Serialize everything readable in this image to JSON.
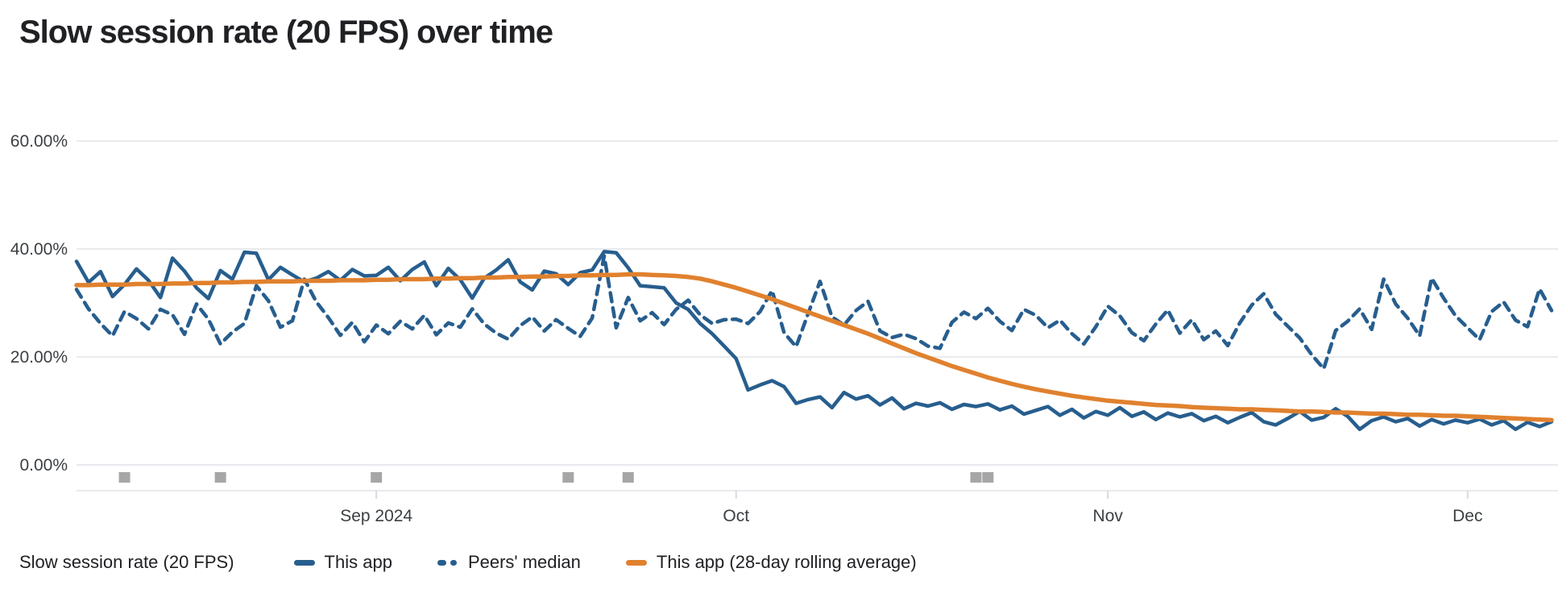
{
  "page": {
    "title": "Slow session rate (20 FPS) over time"
  },
  "legend": {
    "series_label": "Slow session rate (20 FPS)",
    "items": [
      {
        "label": "This app",
        "style": "solid",
        "color": "#275e8e"
      },
      {
        "label": "Peers' median",
        "style": "dashed",
        "color": "#275e8e"
      },
      {
        "label": "This app (28-day rolling average)",
        "style": "solid",
        "color": "#e0812e"
      }
    ]
  },
  "colors": {
    "background": "#ffffff",
    "title_text": "#202124",
    "axis_text": "#3c4043",
    "gridline": "#e8eaed",
    "tick": "#d7dadd",
    "series_blue": "#275e8e",
    "series_orange": "#e0812e",
    "release_marker": "#a6a6a6"
  },
  "chart_data": {
    "type": "line",
    "title": "Slow session rate (20 FPS) over time",
    "ylabel": "Slow session rate (20 FPS)",
    "grid": true,
    "legend_position": "bottom",
    "ylim": [
      0,
      66
    ],
    "y_tick_values": [
      60,
      40,
      20,
      0
    ],
    "y_ticks": [
      "60.00%",
      "40.00%",
      "20.00%",
      "0.00%"
    ],
    "x_ticks": [
      {
        "label": "Sep 2024",
        "date": "2024-09-01"
      },
      {
        "label": "Oct",
        "date": "2024-10-01"
      },
      {
        "label": "Nov",
        "date": "2024-11-01"
      },
      {
        "label": "Dec",
        "date": "2024-12-01"
      }
    ],
    "x": [
      "2024-08-07",
      "2024-08-08",
      "2024-08-09",
      "2024-08-10",
      "2024-08-11",
      "2024-08-12",
      "2024-08-13",
      "2024-08-14",
      "2024-08-15",
      "2024-08-16",
      "2024-08-17",
      "2024-08-18",
      "2024-08-19",
      "2024-08-20",
      "2024-08-21",
      "2024-08-22",
      "2024-08-23",
      "2024-08-24",
      "2024-08-25",
      "2024-08-26",
      "2024-08-27",
      "2024-08-28",
      "2024-08-29",
      "2024-08-30",
      "2024-08-31",
      "2024-09-01",
      "2024-09-02",
      "2024-09-03",
      "2024-09-04",
      "2024-09-05",
      "2024-09-06",
      "2024-09-07",
      "2024-09-08",
      "2024-09-09",
      "2024-09-10",
      "2024-09-11",
      "2024-09-12",
      "2024-09-13",
      "2024-09-14",
      "2024-09-15",
      "2024-09-16",
      "2024-09-17",
      "2024-09-18",
      "2024-09-19",
      "2024-09-20",
      "2024-09-21",
      "2024-09-22",
      "2024-09-23",
      "2024-09-24",
      "2024-09-25",
      "2024-09-26",
      "2024-09-27",
      "2024-09-28",
      "2024-09-29",
      "2024-09-30",
      "2024-10-01",
      "2024-10-02",
      "2024-10-03",
      "2024-10-04",
      "2024-10-05",
      "2024-10-06",
      "2024-10-07",
      "2024-10-08",
      "2024-10-09",
      "2024-10-10",
      "2024-10-11",
      "2024-10-12",
      "2024-10-13",
      "2024-10-14",
      "2024-10-15",
      "2024-10-16",
      "2024-10-17",
      "2024-10-18",
      "2024-10-19",
      "2024-10-20",
      "2024-10-21",
      "2024-10-22",
      "2024-10-23",
      "2024-10-24",
      "2024-10-25",
      "2024-10-26",
      "2024-10-27",
      "2024-10-28",
      "2024-10-29",
      "2024-10-30",
      "2024-10-31",
      "2024-11-01",
      "2024-11-02",
      "2024-11-03",
      "2024-11-04",
      "2024-11-05",
      "2024-11-06",
      "2024-11-07",
      "2024-11-08",
      "2024-11-09",
      "2024-11-10",
      "2024-11-11",
      "2024-11-12",
      "2024-11-13",
      "2024-11-14",
      "2024-11-15",
      "2024-11-16",
      "2024-11-17",
      "2024-11-18",
      "2024-11-19",
      "2024-11-20",
      "2024-11-21",
      "2024-11-22",
      "2024-11-23",
      "2024-11-24",
      "2024-11-25",
      "2024-11-26",
      "2024-11-27",
      "2024-11-28",
      "2024-11-29",
      "2024-11-30",
      "2024-12-01",
      "2024-12-02",
      "2024-12-03",
      "2024-12-04",
      "2024-12-05",
      "2024-12-06",
      "2024-12-07",
      "2024-12-08"
    ],
    "series": [
      {
        "name": "This app",
        "style": "solid",
        "color": "#275e8e",
        "values": [
          37.7,
          33.8,
          35.8,
          31.2,
          33.4,
          36.3,
          34.2,
          31.0,
          38.3,
          35.9,
          32.8,
          30.8,
          36.0,
          34.4,
          39.4,
          39.2,
          34.3,
          36.6,
          35.2,
          33.9,
          34.6,
          35.8,
          34.2,
          36.2,
          35.0,
          35.1,
          36.6,
          34.1,
          36.2,
          37.6,
          33.2,
          36.4,
          34.3,
          30.9,
          34.6,
          36.1,
          38.0,
          33.9,
          32.4,
          35.9,
          35.4,
          33.4,
          35.6,
          36.1,
          39.5,
          39.3,
          36.5,
          33.2,
          33.0,
          32.8,
          30.0,
          28.8,
          26.2,
          24.3,
          22.0,
          19.7,
          13.9,
          14.8,
          15.6,
          14.5,
          11.4,
          12.1,
          12.6,
          10.6,
          13.4,
          12.2,
          12.8,
          11.1,
          12.4,
          10.4,
          11.4,
          10.9,
          11.5,
          10.3,
          11.2,
          10.8,
          11.3,
          10.2,
          10.9,
          9.4,
          10.1,
          10.8,
          9.2,
          10.3,
          8.7,
          9.9,
          9.2,
          10.6,
          9.0,
          9.8,
          8.4,
          9.6,
          8.9,
          9.5,
          8.2,
          9.0,
          7.8,
          8.8,
          9.7,
          8.0,
          7.4,
          8.6,
          9.9,
          8.3,
          8.8,
          10.4,
          9.0,
          6.6,
          8.2,
          8.9,
          8.0,
          8.6,
          7.2,
          8.4,
          7.6,
          8.3,
          7.8,
          8.5,
          7.4,
          8.2,
          6.6,
          7.9,
          7.1,
          8.0
        ]
      },
      {
        "name": "Peers' median",
        "style": "dashed",
        "color": "#275e8e",
        "values": [
          32.5,
          28.9,
          26.2,
          23.9,
          28.4,
          27.1,
          25.2,
          28.8,
          27.8,
          24.2,
          29.8,
          27.0,
          22.4,
          24.6,
          26.2,
          33.2,
          30.4,
          25.5,
          26.7,
          34.4,
          30.2,
          27.3,
          24.0,
          26.4,
          22.8,
          25.9,
          24.3,
          26.6,
          25.2,
          27.7,
          24.1,
          26.3,
          25.5,
          28.9,
          26.1,
          24.4,
          23.3,
          25.8,
          27.4,
          24.8,
          26.9,
          25.3,
          23.8,
          27.2,
          38.7,
          25.4,
          31.0,
          26.7,
          28.2,
          26.0,
          28.8,
          30.5,
          27.8,
          26.2,
          26.9,
          27.0,
          26.2,
          28.4,
          32.3,
          24.5,
          21.9,
          28.0,
          34.0,
          27.4,
          25.9,
          28.6,
          30.3,
          24.8,
          23.6,
          24.2,
          23.4,
          22.0,
          21.6,
          26.4,
          28.3,
          27.1,
          29.0,
          26.6,
          24.9,
          28.8,
          27.7,
          25.4,
          26.8,
          24.3,
          22.4,
          25.6,
          29.4,
          27.6,
          24.5,
          23.0,
          26.1,
          28.7,
          24.4,
          26.9,
          23.2,
          24.8,
          22.1,
          26.3,
          29.6,
          31.7,
          27.9,
          25.7,
          23.5,
          20.4,
          17.8,
          24.9,
          26.6,
          28.9,
          25.1,
          34.4,
          29.8,
          27.2,
          23.9,
          34.6,
          30.9,
          27.6,
          25.4,
          23.2,
          28.4,
          30.2,
          26.8,
          25.6,
          32.6,
          28.6
        ]
      },
      {
        "name": "This app (28-day rolling average)",
        "style": "solid",
        "color": "#e0812e",
        "values": [
          33.3,
          33.3,
          33.4,
          33.4,
          33.4,
          33.5,
          33.5,
          33.5,
          33.6,
          33.6,
          33.7,
          33.7,
          33.8,
          33.8,
          33.9,
          33.9,
          34.0,
          34.0,
          34.0,
          34.1,
          34.1,
          34.1,
          34.2,
          34.2,
          34.2,
          34.3,
          34.3,
          34.4,
          34.4,
          34.4,
          34.5,
          34.5,
          34.6,
          34.6,
          34.7,
          34.7,
          34.8,
          34.8,
          34.9,
          34.9,
          35.0,
          35.0,
          35.1,
          35.1,
          35.2,
          35.2,
          35.3,
          35.3,
          35.2,
          35.1,
          35.0,
          34.8,
          34.5,
          34.0,
          33.4,
          32.8,
          32.1,
          31.4,
          30.7,
          29.9,
          29.1,
          28.3,
          27.5,
          26.7,
          25.9,
          25.1,
          24.3,
          23.4,
          22.5,
          21.6,
          20.7,
          19.9,
          19.1,
          18.3,
          17.6,
          16.9,
          16.2,
          15.6,
          15.0,
          14.5,
          14.0,
          13.6,
          13.2,
          12.8,
          12.5,
          12.2,
          11.9,
          11.7,
          11.5,
          11.3,
          11.1,
          11.0,
          10.9,
          10.7,
          10.6,
          10.5,
          10.4,
          10.3,
          10.3,
          10.2,
          10.1,
          10.0,
          9.9,
          9.9,
          9.8,
          9.7,
          9.7,
          9.6,
          9.5,
          9.5,
          9.4,
          9.3,
          9.3,
          9.2,
          9.1,
          9.1,
          9.0,
          8.9,
          8.8,
          8.7,
          8.6,
          8.5,
          8.4,
          8.3
        ]
      }
    ],
    "release_markers": {
      "color": "#a6a6a6",
      "dates": [
        "2024-08-11",
        "2024-08-19",
        "2024-09-01",
        "2024-09-17",
        "2024-09-22",
        "2024-10-21",
        "2024-10-22"
      ]
    }
  }
}
